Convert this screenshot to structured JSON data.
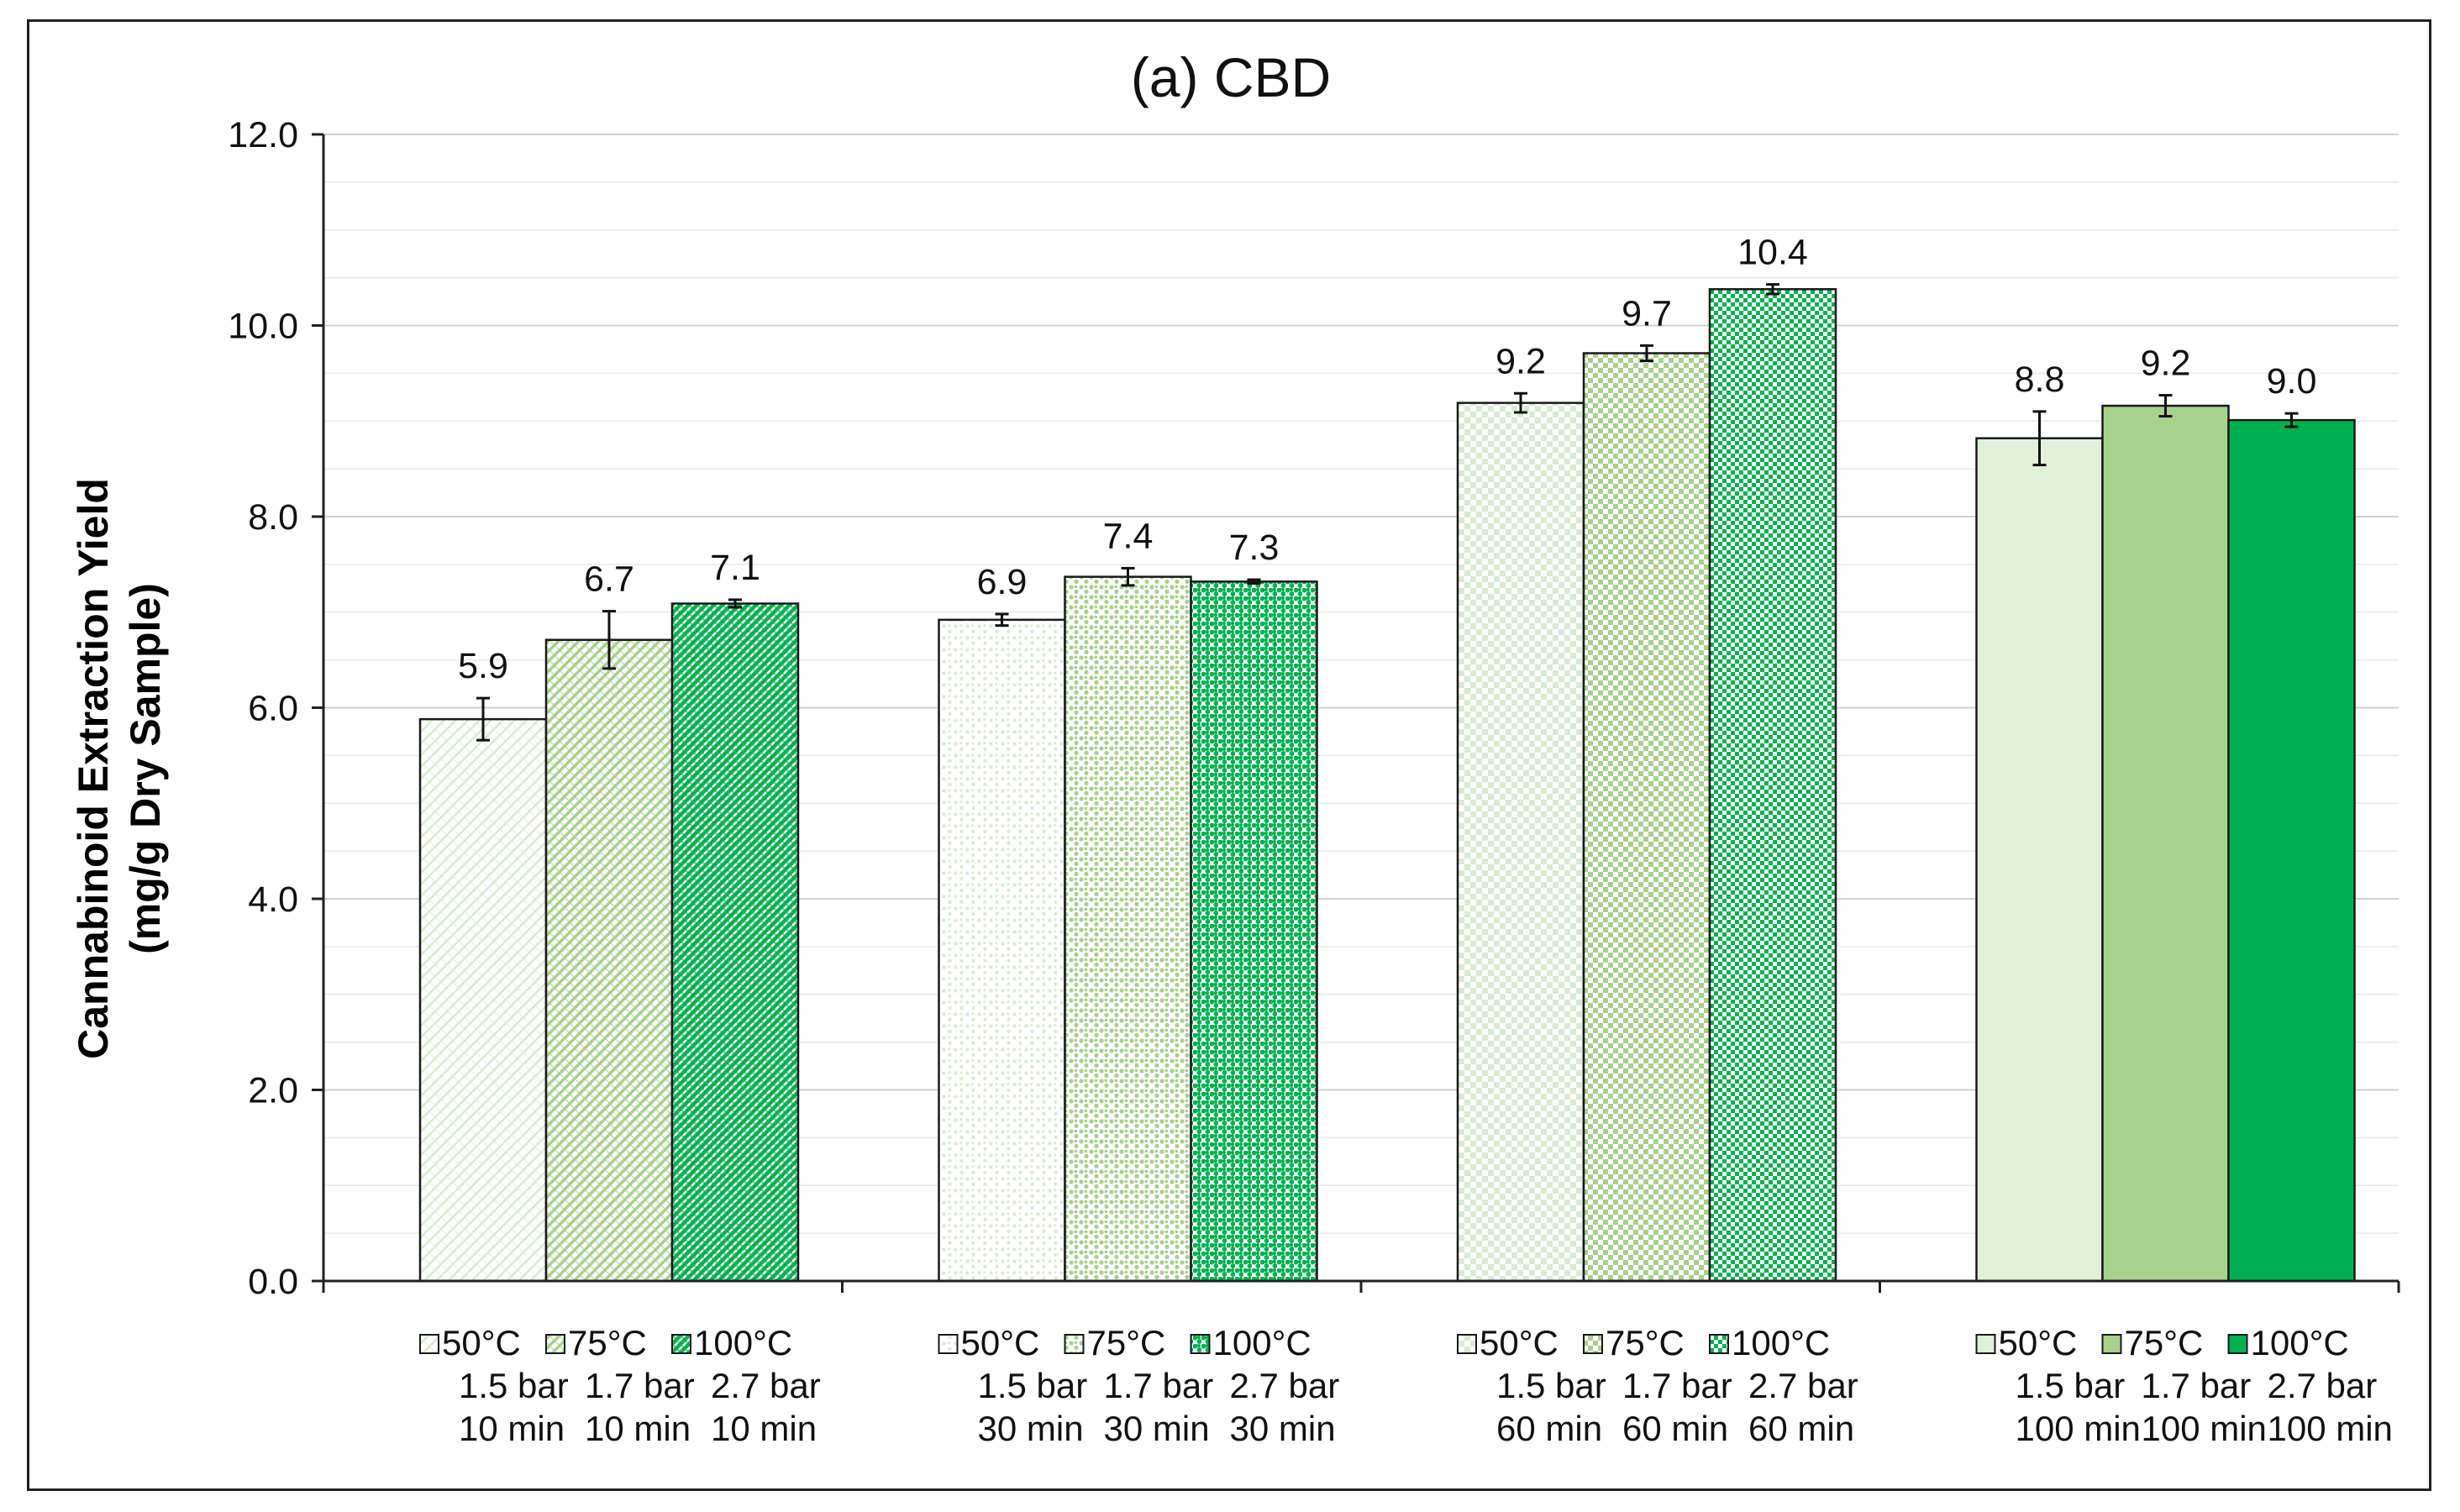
{
  "chart_data": {
    "type": "bar",
    "title": "(a) CBD",
    "xlabel": "",
    "ylabel_lines": [
      "Cannabinoid Extraction Yield",
      "(mg/g Dry Sample)"
    ],
    "ylim": [
      0,
      12
    ],
    "yticks": [
      "0.0",
      "2.0",
      "4.0",
      "6.0",
      "8.0",
      "10.0",
      "12.0"
    ],
    "grid": true,
    "groups": [
      {
        "time": "10 min",
        "bars": [
          {
            "temp": "50°C",
            "pressure": "1.5 bar",
            "time": "10 min",
            "value": 5.88,
            "error": 0.22,
            "label": "5.9",
            "color": "#d9ead3",
            "pattern": "diag-light"
          },
          {
            "temp": "75°C",
            "pressure": "1.7 bar",
            "time": "10 min",
            "value": 6.71,
            "error": 0.3,
            "label": "6.7",
            "color": "#a8d08d",
            "pattern": "diag-mid"
          },
          {
            "temp": "100°C",
            "pressure": "2.7 bar",
            "time": "10 min",
            "value": 7.09,
            "error": 0.04,
            "label": "7.1",
            "color": "#00b050",
            "pattern": "diag-dense"
          }
        ]
      },
      {
        "time": "30 min",
        "bars": [
          {
            "temp": "50°C",
            "pressure": "1.5 bar",
            "time": "30 min",
            "value": 6.92,
            "error": 0.06,
            "label": "6.9",
            "color": "#d9ead3",
            "pattern": "dots-light"
          },
          {
            "temp": "75°C",
            "pressure": "1.7 bar",
            "time": "30 min",
            "value": 7.37,
            "error": 0.09,
            "label": "7.4",
            "color": "#a8d08d",
            "pattern": "dots-mid"
          },
          {
            "temp": "100°C",
            "pressure": "2.7 bar",
            "time": "30 min",
            "value": 7.32,
            "error": 0.02,
            "label": "7.3",
            "color": "#00b050",
            "pattern": "dots-dense"
          }
        ]
      },
      {
        "time": "60 min",
        "bars": [
          {
            "temp": "50°C",
            "pressure": "1.5 bar",
            "time": "60 min",
            "value": 9.19,
            "error": 0.1,
            "label": "9.2",
            "color": "#d9ead3",
            "pattern": "check-light"
          },
          {
            "temp": "75°C",
            "pressure": "1.7 bar",
            "time": "60 min",
            "value": 9.71,
            "error": 0.08,
            "label": "9.7",
            "color": "#a8d08d",
            "pattern": "check-mid"
          },
          {
            "temp": "100°C",
            "pressure": "2.7 bar",
            "time": "60 min",
            "value": 10.38,
            "error": 0.05,
            "label": "10.4",
            "color": "#00b050",
            "pattern": "check-dense"
          }
        ]
      },
      {
        "time": "100 min",
        "bars": [
          {
            "temp": "50°C",
            "pressure": "1.5 bar",
            "time": "100 min",
            "value": 8.82,
            "error": 0.28,
            "label": "8.8",
            "color": "#e2efd9",
            "pattern": "solid"
          },
          {
            "temp": "75°C",
            "pressure": "1.7 bar",
            "time": "100 min",
            "value": 9.16,
            "error": 0.11,
            "label": "9.2",
            "color": "#a9d18e",
            "pattern": "solid"
          },
          {
            "temp": "100°C",
            "pressure": "2.7 bar",
            "time": "100 min",
            "value": 9.01,
            "error": 0.07,
            "label": "9.0",
            "color": "#00b050",
            "pattern": "solid"
          }
        ]
      }
    ]
  }
}
